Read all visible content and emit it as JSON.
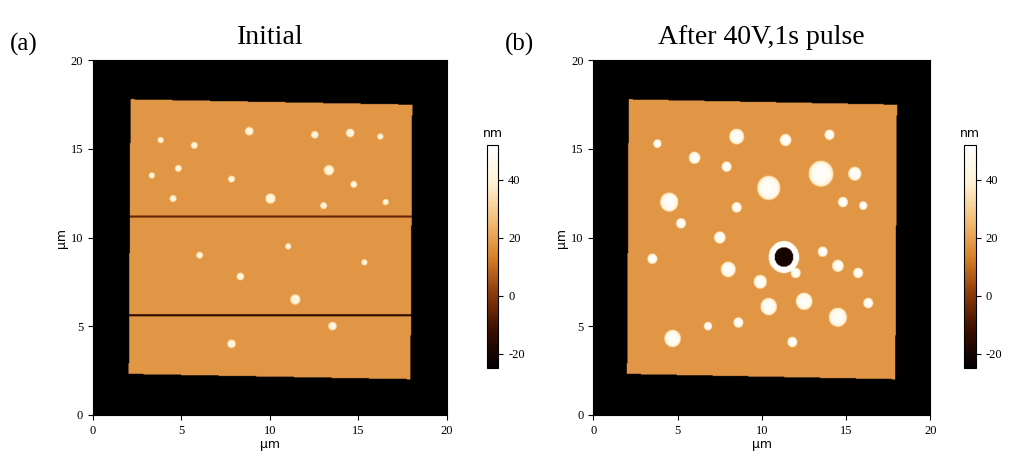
{
  "chart_data": [
    {
      "type": "heatmap",
      "panel_label": "(a)",
      "title": "Initial",
      "xlabel": "µm",
      "ylabel": "µm",
      "xlim": [
        0,
        20
      ],
      "ylim": [
        0,
        20
      ],
      "xticks": [
        0,
        5,
        10,
        15,
        20
      ],
      "yticks": [
        0,
        5,
        10,
        15,
        20
      ],
      "colorbar_label": "nm",
      "colorbar_lim": [
        -25,
        52
      ],
      "colorbar_ticks": [
        -20,
        0,
        20,
        40
      ],
      "background_height": -25,
      "plateau": {
        "corners": [
          [
            2.0,
            2.3
          ],
          [
            17.9,
            2.0
          ],
          [
            18.0,
            17.5
          ],
          [
            2.1,
            17.8
          ]
        ],
        "height": 18
      },
      "scan_lines": [
        {
          "y": 11.2,
          "height": -5
        },
        {
          "y": 5.6,
          "height": -15
        }
      ],
      "particle_height": 42,
      "particles": [
        {
          "x": 4.8,
          "y": 13.9,
          "r": 0.2
        },
        {
          "x": 5.7,
          "y": 15.2,
          "r": 0.2
        },
        {
          "x": 3.8,
          "y": 15.5,
          "r": 0.18
        },
        {
          "x": 8.8,
          "y": 16.0,
          "r": 0.25
        },
        {
          "x": 12.5,
          "y": 15.8,
          "r": 0.22
        },
        {
          "x": 14.5,
          "y": 15.9,
          "r": 0.25
        },
        {
          "x": 13.3,
          "y": 13.8,
          "r": 0.3
        },
        {
          "x": 10.0,
          "y": 12.2,
          "r": 0.3
        },
        {
          "x": 7.8,
          "y": 13.3,
          "r": 0.2
        },
        {
          "x": 13.0,
          "y": 11.8,
          "r": 0.2
        },
        {
          "x": 14.7,
          "y": 13.0,
          "r": 0.2
        },
        {
          "x": 16.5,
          "y": 12.0,
          "r": 0.18
        },
        {
          "x": 4.5,
          "y": 12.2,
          "r": 0.2
        },
        {
          "x": 6.0,
          "y": 9.0,
          "r": 0.2
        },
        {
          "x": 8.3,
          "y": 7.8,
          "r": 0.22
        },
        {
          "x": 11.4,
          "y": 6.5,
          "r": 0.3
        },
        {
          "x": 13.5,
          "y": 5.0,
          "r": 0.25
        },
        {
          "x": 7.8,
          "y": 4.0,
          "r": 0.25
        },
        {
          "x": 15.3,
          "y": 8.6,
          "r": 0.18
        },
        {
          "x": 11.0,
          "y": 9.5,
          "r": 0.18
        },
        {
          "x": 3.3,
          "y": 13.5,
          "r": 0.18
        },
        {
          "x": 16.2,
          "y": 15.7,
          "r": 0.18
        }
      ],
      "rings": []
    },
    {
      "type": "heatmap",
      "panel_label": "(b)",
      "title": "After 40V,1s pulse",
      "xlabel": "µm",
      "ylabel": "µm",
      "xlim": [
        0,
        20
      ],
      "ylim": [
        0,
        20
      ],
      "xticks": [
        0,
        5,
        10,
        15,
        20
      ],
      "yticks": [
        0,
        5,
        10,
        15,
        20
      ],
      "colorbar_label": "nm",
      "colorbar_lim": [
        -25,
        52
      ],
      "colorbar_ticks": [
        -20,
        0,
        20,
        40
      ],
      "background_height": -25,
      "plateau": {
        "corners": [
          [
            2.0,
            2.3
          ],
          [
            17.9,
            2.0
          ],
          [
            18.0,
            17.5
          ],
          [
            2.1,
            17.8
          ]
        ],
        "height": 18
      },
      "scan_lines": [],
      "particle_height": 50,
      "particles": [
        {
          "x": 8.5,
          "y": 15.7,
          "r": 0.45
        },
        {
          "x": 11.4,
          "y": 15.5,
          "r": 0.35
        },
        {
          "x": 14.0,
          "y": 15.8,
          "r": 0.3
        },
        {
          "x": 3.8,
          "y": 15.3,
          "r": 0.25
        },
        {
          "x": 6.0,
          "y": 14.5,
          "r": 0.35
        },
        {
          "x": 7.9,
          "y": 14.0,
          "r": 0.3
        },
        {
          "x": 10.4,
          "y": 12.8,
          "r": 0.7
        },
        {
          "x": 13.5,
          "y": 13.6,
          "r": 0.75
        },
        {
          "x": 15.5,
          "y": 13.6,
          "r": 0.4
        },
        {
          "x": 4.5,
          "y": 12.0,
          "r": 0.55
        },
        {
          "x": 5.2,
          "y": 10.8,
          "r": 0.3
        },
        {
          "x": 8.5,
          "y": 11.7,
          "r": 0.3
        },
        {
          "x": 14.8,
          "y": 12.0,
          "r": 0.3
        },
        {
          "x": 16.0,
          "y": 11.8,
          "r": 0.25
        },
        {
          "x": 7.5,
          "y": 10.0,
          "r": 0.35
        },
        {
          "x": 8.0,
          "y": 8.2,
          "r": 0.45
        },
        {
          "x": 9.9,
          "y": 7.5,
          "r": 0.4
        },
        {
          "x": 12.0,
          "y": 8.0,
          "r": 0.3
        },
        {
          "x": 13.6,
          "y": 9.2,
          "r": 0.3
        },
        {
          "x": 14.5,
          "y": 8.4,
          "r": 0.35
        },
        {
          "x": 15.7,
          "y": 8.0,
          "r": 0.3
        },
        {
          "x": 12.5,
          "y": 6.4,
          "r": 0.5
        },
        {
          "x": 10.4,
          "y": 6.1,
          "r": 0.5
        },
        {
          "x": 14.5,
          "y": 5.5,
          "r": 0.55
        },
        {
          "x": 16.3,
          "y": 6.3,
          "r": 0.3
        },
        {
          "x": 4.7,
          "y": 4.3,
          "r": 0.5
        },
        {
          "x": 8.6,
          "y": 5.2,
          "r": 0.3
        },
        {
          "x": 11.8,
          "y": 4.1,
          "r": 0.3
        },
        {
          "x": 6.8,
          "y": 5.0,
          "r": 0.25
        },
        {
          "x": 3.5,
          "y": 8.8,
          "r": 0.3
        }
      ],
      "rings": [
        {
          "x": 11.3,
          "y": 8.9,
          "r_outer": 0.9,
          "r_inner": 0.55,
          "rim_height": 50,
          "pit_height": -20
        }
      ]
    }
  ]
}
